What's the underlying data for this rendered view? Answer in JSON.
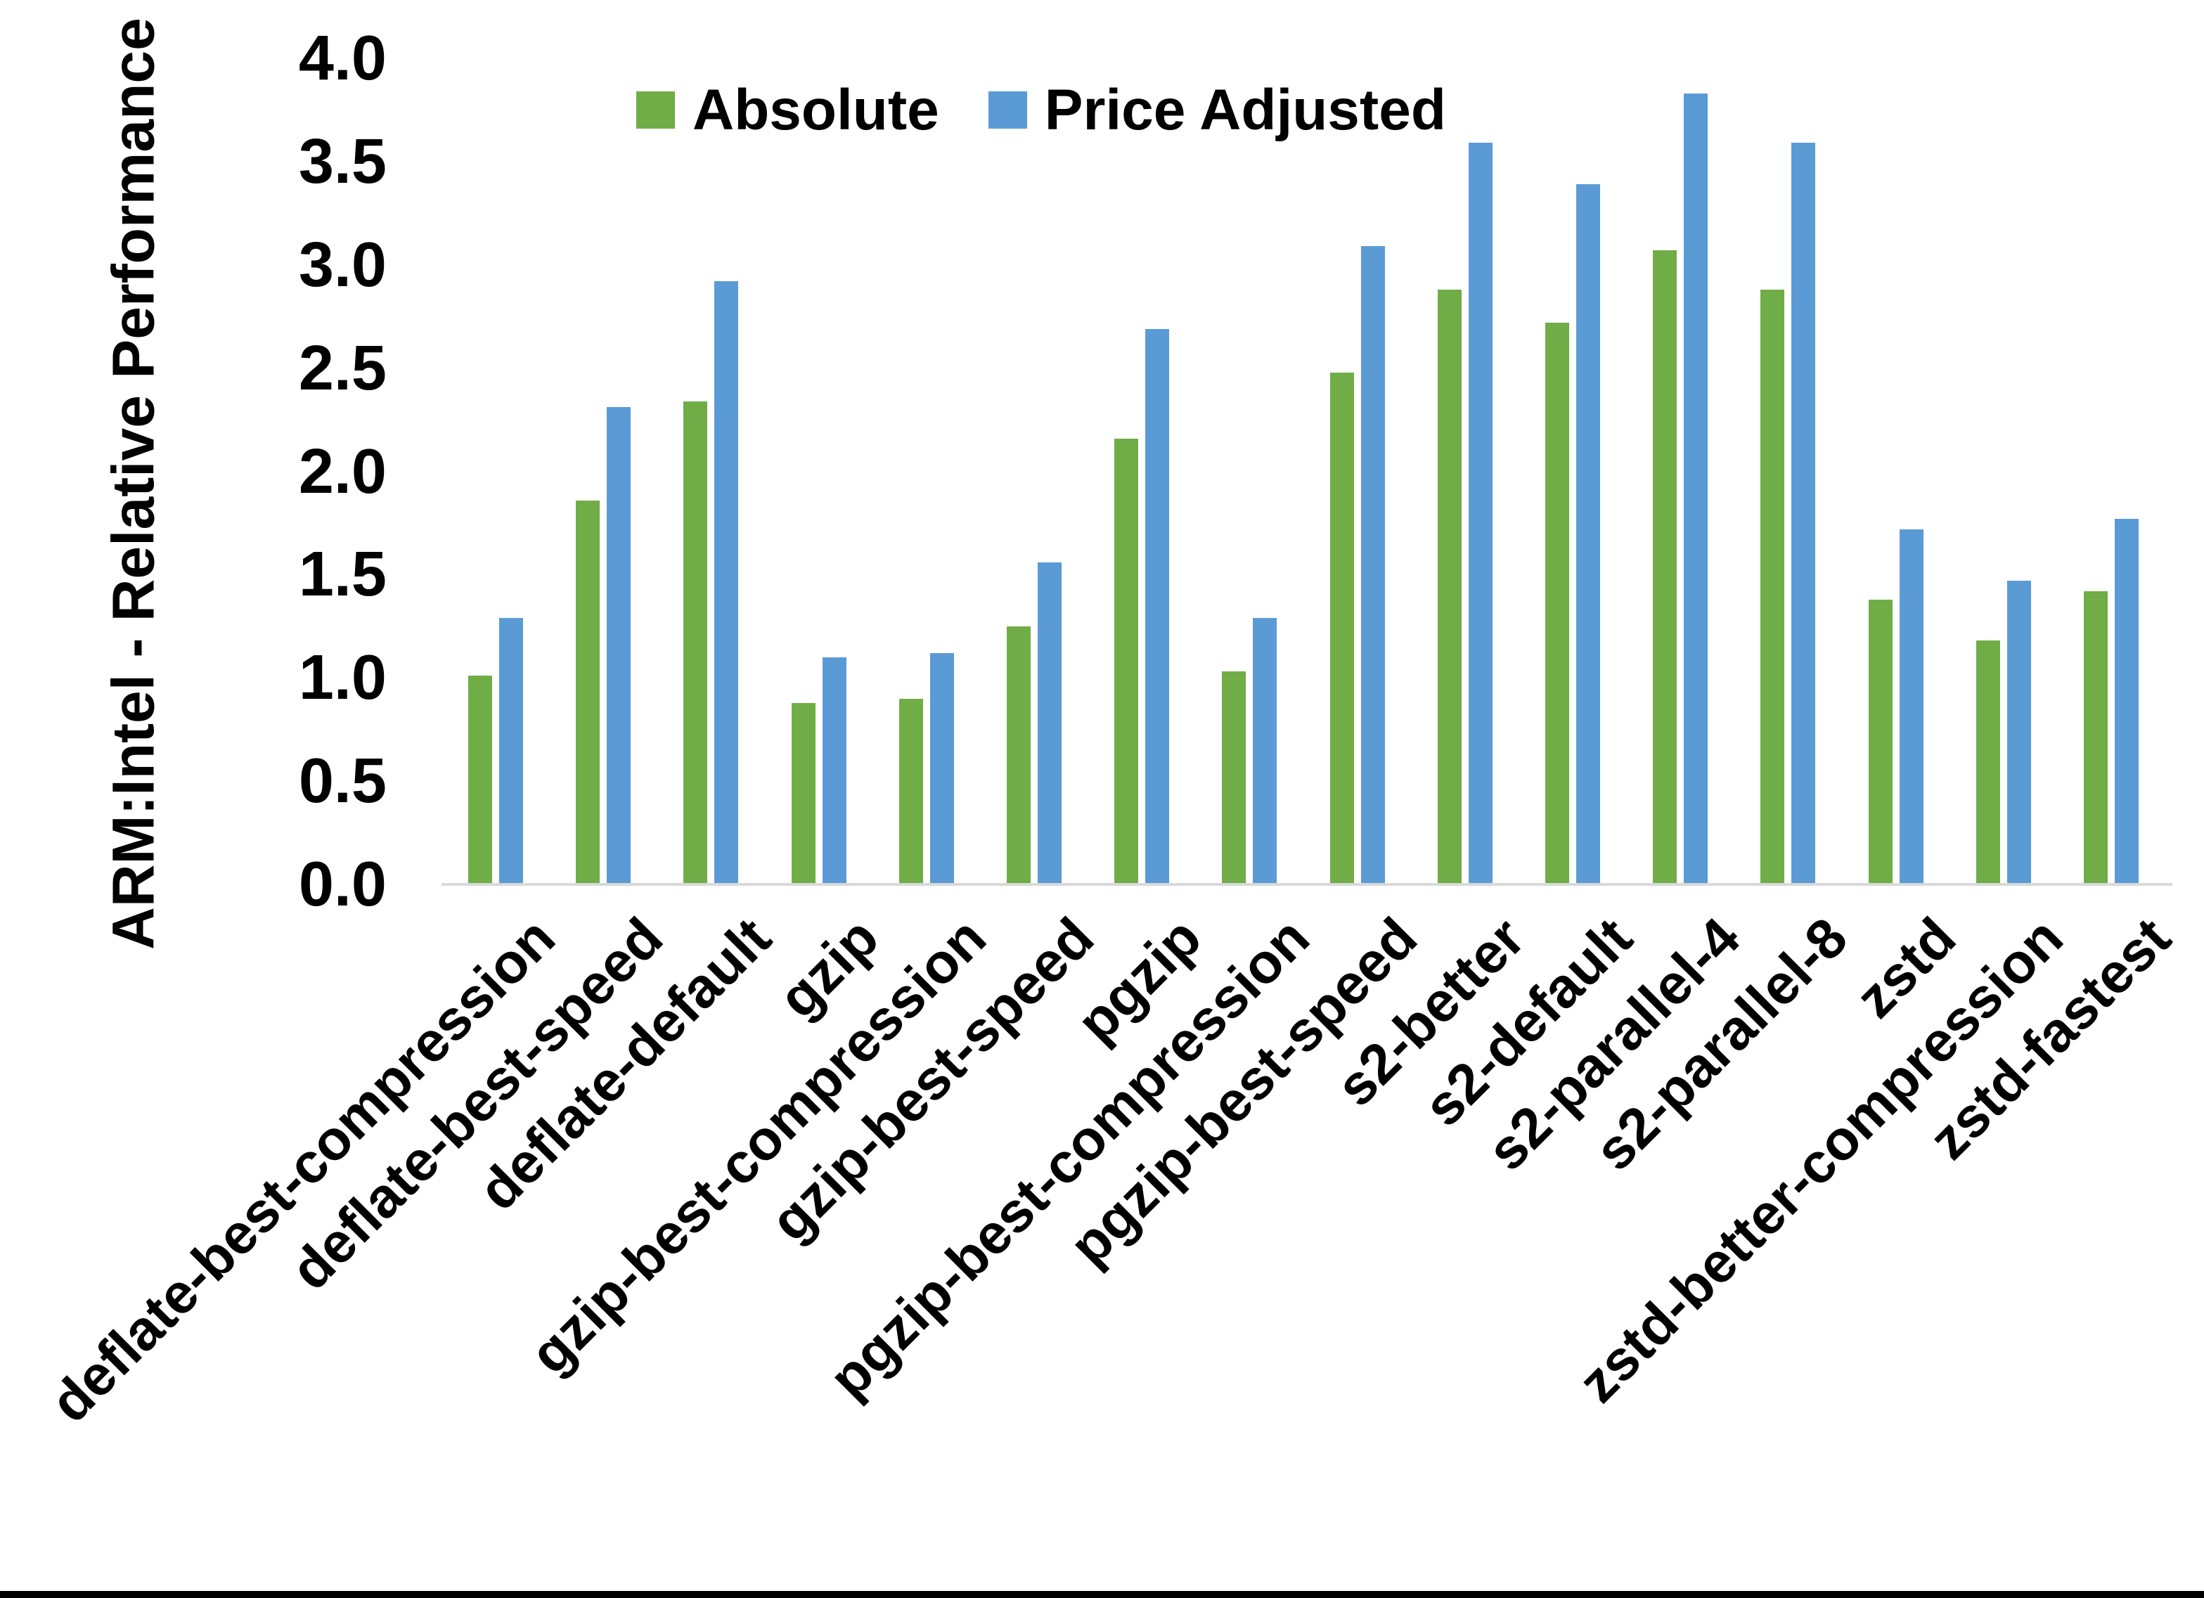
{
  "chart_data": {
    "type": "bar",
    "title": "",
    "ylabel": "ARM:Intel - Relative Performance",
    "xlabel": "",
    "ylim": [
      0,
      4
    ],
    "ytick_step": 0.5,
    "yticks": [
      0,
      0.5,
      1,
      1.5,
      2,
      2.5,
      3,
      3.5,
      4
    ],
    "ytick_labels": [
      "0.0",
      "0.5",
      "1.0",
      "1.5",
      "2.0",
      "2.5",
      "3.0",
      "3.5",
      "4.0"
    ],
    "grid": "off",
    "legend_position": "top-center",
    "categories": [
      "deflate-best-compression",
      "deflate-best-speed",
      "deflate-default",
      "gzip",
      "gzip-best-compression",
      "gzip-best-speed",
      "pgzip",
      "pgzip-best-compression",
      "pgzip-best-speed",
      "s2-better",
      "s2-default",
      "s2-parallel-4",
      "s2-parallel-8",
      "zstd",
      "zstd-better-compression",
      "zstd-fastest"
    ],
    "series": [
      {
        "name": "Absolute",
        "color": "#70AD47",
        "values": [
          1.01,
          1.86,
          2.34,
          0.88,
          0.9,
          1.25,
          2.16,
          1.03,
          2.48,
          2.88,
          2.72,
          3.07,
          2.88,
          1.38,
          1.18,
          1.42
        ]
      },
      {
        "name": "Price Adjusted",
        "color": "#5B9BD5",
        "values": [
          1.29,
          2.31,
          2.92,
          1.1,
          1.12,
          1.56,
          2.69,
          1.29,
          3.09,
          3.59,
          3.39,
          3.83,
          3.59,
          1.72,
          1.47,
          1.77
        ]
      }
    ],
    "axis_line_color": "#D9D9D9",
    "page_border_bottom_color": "#000000"
  }
}
